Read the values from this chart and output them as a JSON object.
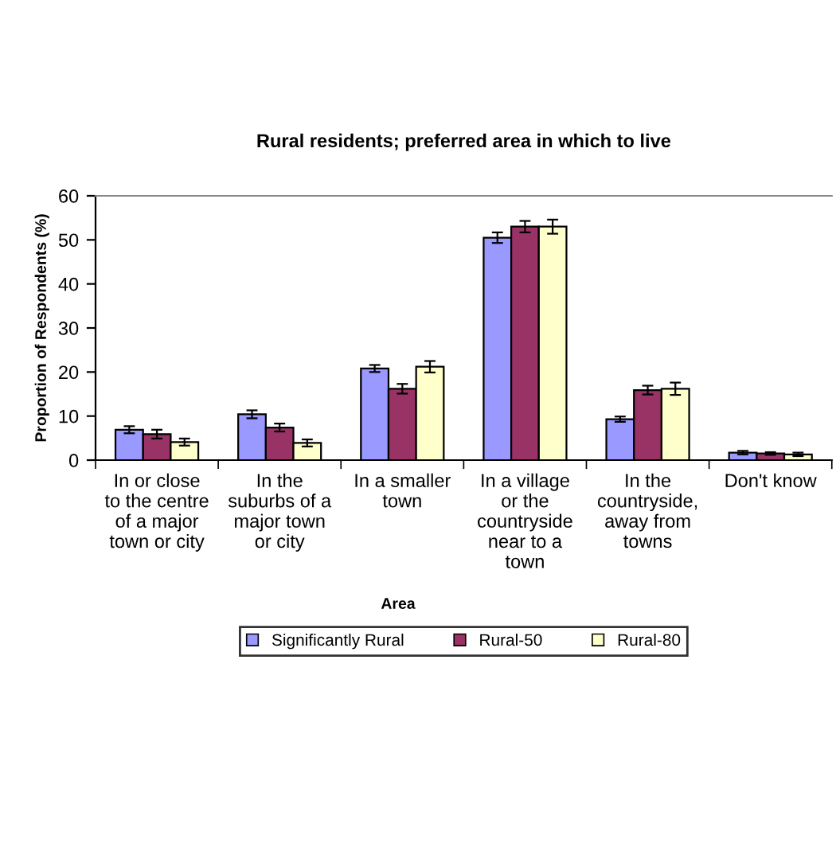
{
  "chart_data": {
    "type": "bar",
    "title": "Rural residents; preferred area in which to live",
    "xlabel": "Area",
    "ylabel": "Proportion of Respondents (%)",
    "categories": [
      "In or close\nto the centre\nof a major\ntown or city",
      "In the\nsuburbs of a\nmajor town\nor city",
      "In a smaller\ntown",
      "In a village\nor the\ncountryside\nnear to a\ntown",
      "In the\ncountryside,\naway from\ntowns",
      "Don't know"
    ],
    "series": [
      {
        "name": "Significantly Rural",
        "color": "#9999ff",
        "values": [
          6.9,
          10.4,
          20.8,
          50.5,
          9.3,
          1.7
        ],
        "errors": [
          0.8,
          0.9,
          0.8,
          1.2,
          0.6,
          0.4
        ]
      },
      {
        "name": "Rural-50",
        "color": "#993366",
        "values": [
          5.9,
          7.4,
          16.2,
          53.0,
          15.9,
          1.5
        ],
        "errors": [
          1.0,
          0.9,
          1.1,
          1.3,
          1.0,
          0.3
        ]
      },
      {
        "name": "Rural-80",
        "color": "#ffffcc",
        "values": [
          4.1,
          3.9,
          21.2,
          53.0,
          16.2,
          1.3
        ],
        "errors": [
          0.8,
          0.8,
          1.3,
          1.6,
          1.4,
          0.4
        ]
      }
    ],
    "ylim": [
      0,
      60
    ],
    "yticks": [
      0,
      10,
      20,
      30,
      40,
      50,
      60
    ],
    "grid": false,
    "legend": "bottom"
  }
}
